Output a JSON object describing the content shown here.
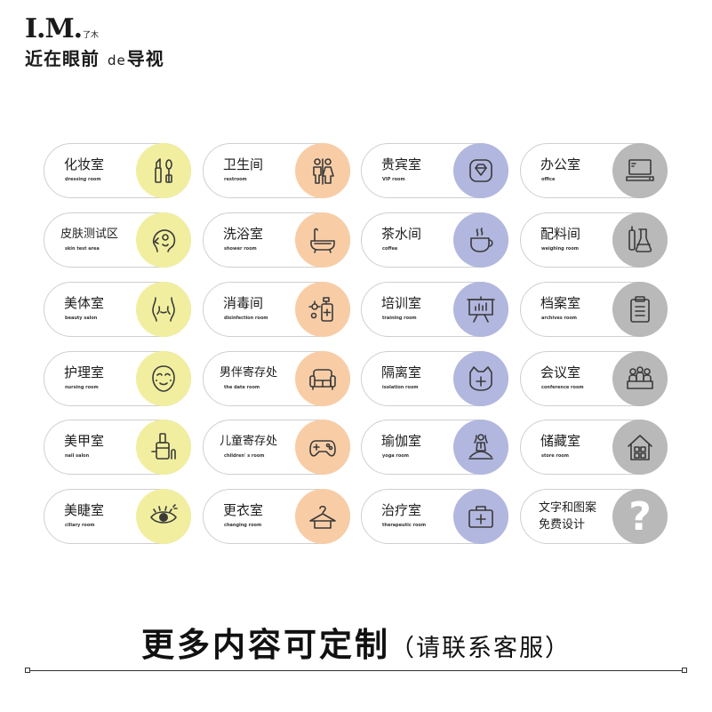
{
  "brand": {
    "mark": "I.M.",
    "small": "了木",
    "name_a": "近在眼前",
    "name_de": "de",
    "name_b": "导视"
  },
  "signs": [
    {
      "cn": "化妆室",
      "en": "dressing room",
      "color": "#f1ef9f",
      "icon": "makeup-icon"
    },
    {
      "cn": "卫生间",
      "en": "restroom",
      "color": "#f8cda6",
      "icon": "restroom-icon"
    },
    {
      "cn": "贵宾室",
      "en": "VIP room",
      "color": "#b2b7df",
      "icon": "vip-diamond-icon"
    },
    {
      "cn": "办公室",
      "en": "office",
      "color": "#b9b9b9",
      "icon": "computer-icon"
    },
    {
      "cn": "皮肤测试区",
      "en": "skin test area",
      "color": "#f1ef9f",
      "icon": "face-profile-icon"
    },
    {
      "cn": "洗浴室",
      "en": "shower room",
      "color": "#f8cda6",
      "icon": "bathtub-icon"
    },
    {
      "cn": "茶水间",
      "en": "coffee",
      "color": "#b2b7df",
      "icon": "coffee-cup-icon"
    },
    {
      "cn": "配料间",
      "en": "weighing room",
      "color": "#b9b9b9",
      "icon": "lab-flask-icon"
    },
    {
      "cn": "美体室",
      "en": "beauty salon",
      "color": "#f1ef9f",
      "icon": "body-icon"
    },
    {
      "cn": "消毒间",
      "en": "disinfection room",
      "color": "#f8cda6",
      "icon": "disinfect-bottle-icon"
    },
    {
      "cn": "培训室",
      "en": "training room",
      "color": "#b2b7df",
      "icon": "presentation-board-icon"
    },
    {
      "cn": "档案室",
      "en": "archives room",
      "color": "#b9b9b9",
      "icon": "clipboard-icon"
    },
    {
      "cn": "护理室",
      "en": "nursing room",
      "color": "#f1ef9f",
      "icon": "face-mask-icon"
    },
    {
      "cn": "男伴寄存处",
      "en": "the date room",
      "color": "#f8cda6",
      "icon": "sofa-icon"
    },
    {
      "cn": "隔离室",
      "en": "isolation room",
      "color": "#b2b7df",
      "icon": "medical-cat-icon"
    },
    {
      "cn": "会议室",
      "en": "conference room",
      "color": "#b9b9b9",
      "icon": "meeting-people-icon"
    },
    {
      "cn": "美甲室",
      "en": "nail salon",
      "color": "#f1ef9f",
      "icon": "nail-polish-icon"
    },
    {
      "cn": "儿童寄存处",
      "en": "children' s room",
      "color": "#f8cda6",
      "icon": "gamepad-icon"
    },
    {
      "cn": "瑜伽室",
      "en": "yoga room",
      "color": "#b2b7df",
      "icon": "yoga-icon"
    },
    {
      "cn": "储藏室",
      "en": "store room",
      "color": "#b9b9b9",
      "icon": "house-storage-icon"
    },
    {
      "cn": "美睫室",
      "en": "ciliary room",
      "color": "#f1ef9f",
      "icon": "eye-lash-icon"
    },
    {
      "cn": "更衣室",
      "en": "changing room",
      "color": "#f8cda6",
      "icon": "hanger-icon"
    },
    {
      "cn": "治疗室",
      "en": "therapeutic room",
      "color": "#b2b7df",
      "icon": "medical-kit-icon"
    },
    {
      "cn": "文字和图案\n免费设计",
      "en": "",
      "color": "#b9b9b9",
      "icon": "question-mark-icon",
      "glyph": "?"
    }
  ],
  "footer": {
    "main": "更多内容可定制",
    "sub": "（请联系客服）"
  }
}
